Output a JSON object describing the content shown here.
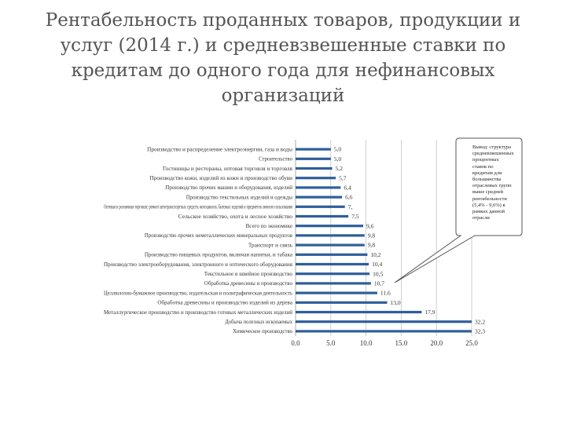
{
  "title": "Рентабельность проданных товаров, продукции и услуг (2014 г.) и средневзвешенные ставки по кредитам до одного года для нефинансовых организаций",
  "callout_text": "Вывод: структура средневзвешенных процентных ставок по кредитам для большинства отраслевых групп выше средней рентабельности (5,4% - 9,6%) в рамках данной отрасли",
  "colors": {
    "bar": "#2e5f9a",
    "text": "#333333",
    "title": "#555555",
    "grid": "#bbbbbb"
  },
  "chart_data": {
    "type": "bar",
    "orientation": "horizontal",
    "title": "",
    "xlabel": "",
    "ylabel": "",
    "xlim": [
      0,
      25
    ],
    "xticks": [
      "0.0",
      "5.0",
      "10.0",
      "15.0",
      "20.0",
      "25.0"
    ],
    "grid": "vertical",
    "categories": [
      "Производство и распределение электроэнергии, газа и воды",
      "Строительство",
      "Гостиницы и рестораны, оптовая торговля и торговля",
      "Производство кожи, изделий из кожи и производство обуви",
      "Производство прочих машин и оборудования, изделий",
      "Производство текстильных изделий и одежды",
      "Оптовая и розничная торговля; ремонт автотранспортных средств, мотоциклов, бытовых изделий и предметов личного пользования",
      "Сельское хозяйство, охота и лесное хозяйство",
      "Всего по экономике",
      "Производство прочих неметаллических минеральных продуктов",
      "Транспорт и связь",
      "Производство пищевых продуктов, включая напитки, и табака",
      "Производство электрооборудования, электронного и оптического оборудования",
      "Текстильное и швейное производство",
      "Обработка древесины и производство",
      "Целлюлозно-бумажное производство, издательская и полиграфическая деятельность",
      "Обработка древесины и производство изделий из дерева",
      "Металлургическое производство и производство готовых металлических изделий",
      "Добыча полезных ископаемых",
      "Химическое производство"
    ],
    "values": [
      5.0,
      5.0,
      5.2,
      5.7,
      6.4,
      6.6,
      7.0,
      7.5,
      9.6,
      9.8,
      9.8,
      10.2,
      10.4,
      10.5,
      10.7,
      11.6,
      13.0,
      17.9,
      32.2,
      32.3
    ],
    "value_labels": [
      "5,0",
      "5,0",
      "5,2",
      "5,7",
      "6,4",
      "6,6",
      "7,",
      "7,5",
      "9,6",
      "9,8",
      "9,8",
      "10,2",
      "10,4",
      "10,5",
      "10,7",
      "11,6",
      "13,0",
      "17,9",
      "32,2",
      "32,3"
    ]
  }
}
